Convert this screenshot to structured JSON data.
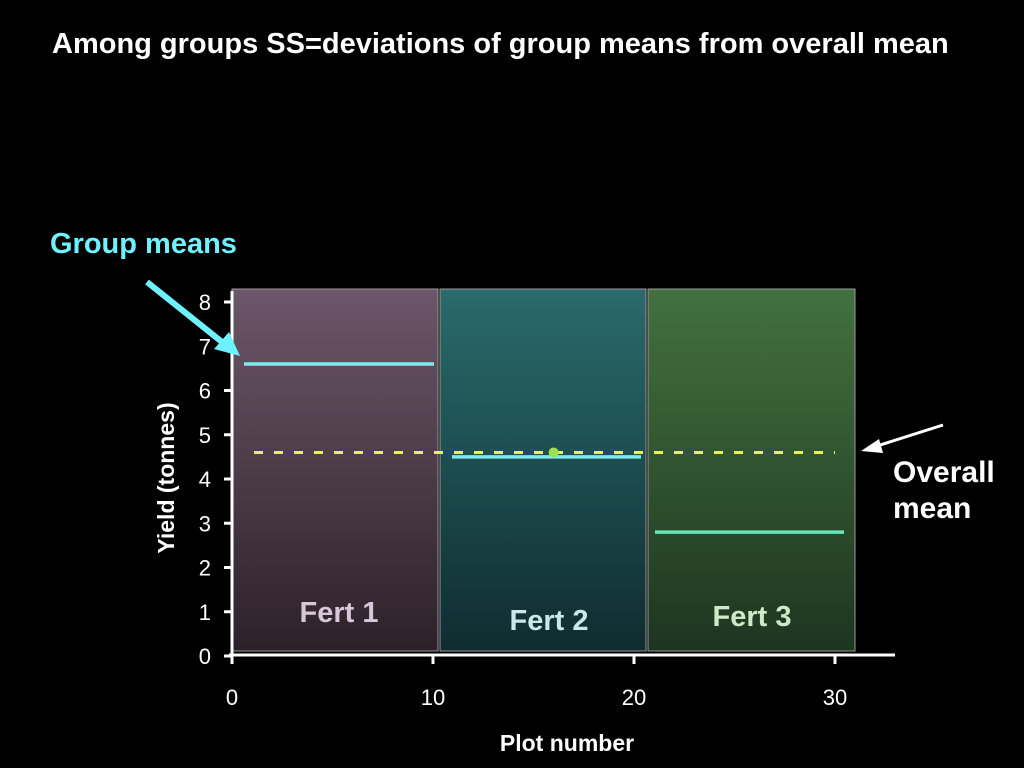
{
  "slide": {
    "title": "Among groups SS=deviations of group means from overall mean"
  },
  "annotations": {
    "group_means": "Group means",
    "overall_mean_line1": "Overall",
    "overall_mean_line2": "mean",
    "group_means_color": "#6ef2ff",
    "overall_mean_arrow_color": "#ffffff"
  },
  "chart_data": {
    "type": "line",
    "xlabel": "Plot number",
    "ylabel": "Yield (tonnes)",
    "xlim": [
      0,
      30
    ],
    "ylim": [
      0,
      8
    ],
    "x_ticks": [
      0,
      10,
      20,
      30
    ],
    "y_ticks": [
      0,
      1,
      2,
      3,
      4,
      5,
      6,
      7,
      8
    ],
    "overall_mean": 4.6,
    "groups": [
      {
        "name": "Fert 1",
        "x_range": [
          0,
          10
        ],
        "mean": 6.6,
        "bg_color": "#6a5468",
        "label_color": "#d6c8d8"
      },
      {
        "name": "Fert 2",
        "x_range": [
          10,
          20
        ],
        "mean": 4.5,
        "bg_color": "#276767",
        "label_color": "#cce7e7"
      },
      {
        "name": "Fert 3",
        "x_range": [
          20,
          30
        ],
        "mean": 2.8,
        "bg_color": "#3d6a3c",
        "label_color": "#cfe8c8"
      }
    ],
    "overall_mean_point": {
      "x": 16,
      "y": 4.6
    },
    "colors": {
      "axis": "#ffffff",
      "group_mean_line": "#7fe8ee",
      "group3_mean_line": "#63e6b8",
      "overall_mean_line": "#e8f060",
      "overall_mean_point": "#9be050"
    }
  }
}
